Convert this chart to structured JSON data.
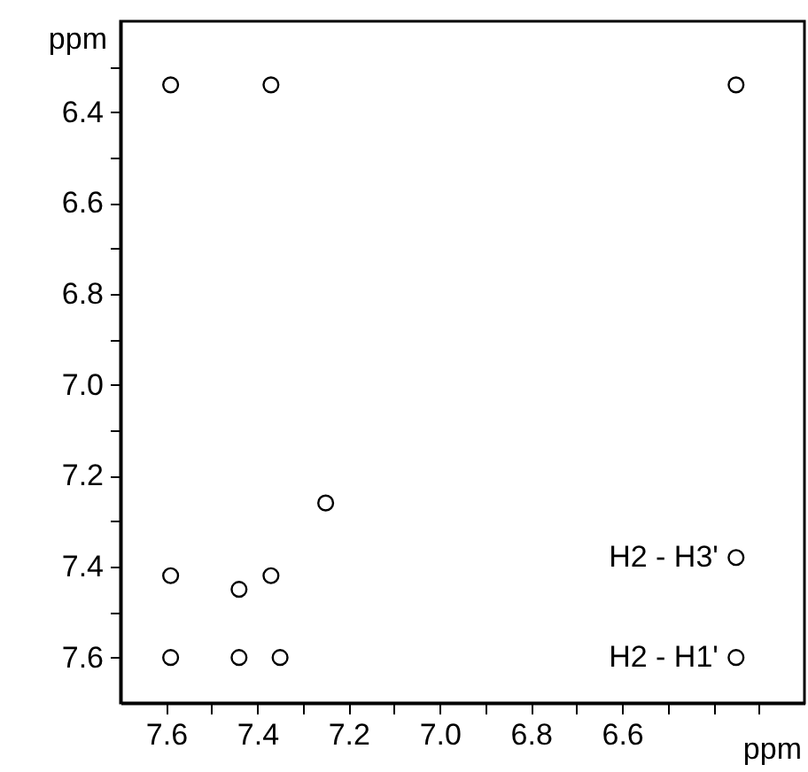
{
  "chart_data": {
    "type": "scatter",
    "xlabel": "ppm",
    "ylabel": "ppm",
    "xlim": [
      7.7,
      6.2
    ],
    "ylim": [
      7.7,
      6.2
    ],
    "xticks": [
      7.6,
      {
        "value": 7.5,
        "label": null
      },
      7.4,
      {
        "value": 7.3,
        "label": null
      },
      7.2,
      {
        "value": 7.1,
        "label": null
      },
      {
        "value": 7,
        "label": "7.0"
      },
      {
        "value": 6.9,
        "label": null
      },
      6.8,
      {
        "value": 6.7,
        "label": null
      },
      6.6,
      {
        "value": 6.5,
        "label": null
      },
      {
        "value": 6.4,
        "label": null
      },
      {
        "value": 6.3,
        "label": null
      }
    ],
    "yticks": [
      {
        "value": 6.3,
        "label": null
      },
      6.4,
      {
        "value": 6.5,
        "label": null
      },
      6.6,
      {
        "value": 6.7,
        "label": null
      },
      6.8,
      {
        "value": 6.9,
        "label": null
      },
      {
        "value": 7,
        "label": "7.0"
      },
      {
        "value": 7.1,
        "label": null
      },
      7.2,
      {
        "value": 7.3,
        "label": null
      },
      7.4,
      {
        "value": 7.5,
        "label": null
      },
      7.6
    ],
    "marker": "circle",
    "series": [
      {
        "color": "#000000",
        "x": [
          7.59,
          7.37,
          6.35,
          7.25,
          6.35,
          6.35,
          7.59,
          7.59,
          7.44,
          7.37,
          7.44,
          7.35
        ],
        "values": [
          6.34,
          6.34,
          6.34,
          7.26,
          7.38,
          7.6,
          7.6,
          7.42,
          7.45,
          7.42,
          7.6,
          7.6
        ]
      }
    ],
    "annotations": [
      {
        "text": "H2 - H3'",
        "x": 6.35,
        "y": 7.38
      },
      {
        "text": "H2 - H1'",
        "x": 6.35,
        "y": 7.6
      }
    ]
  }
}
